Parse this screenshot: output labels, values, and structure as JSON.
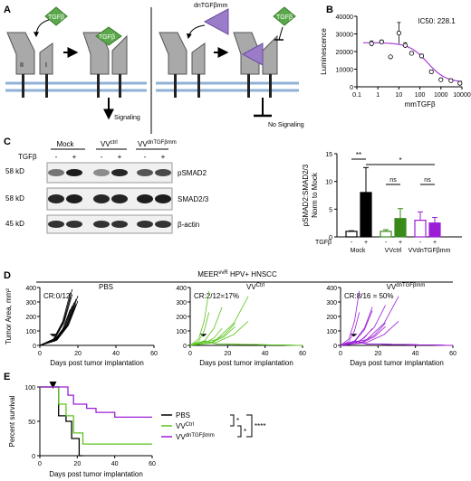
{
  "panels": {
    "a": "A",
    "b": "B",
    "c": "C",
    "d": "D",
    "e": "E"
  },
  "panel_a": {
    "ligand_left": "TGFβ",
    "ligand_bound": "TGFβ",
    "dn_label": "dnTGFβmm",
    "ligand_right": "TGFβ",
    "receptor_ii": "II",
    "receptor_i": "I",
    "signaling": "Signaling",
    "no_signaling": "No Signaling"
  },
  "panel_c": {
    "group_mock": "Mock",
    "group_vvctrl_base": "VV",
    "group_vvctrl_sup": "ctrl",
    "group_vvdn_base": "VV",
    "group_vvdn_sup": "dnTGFβmm",
    "tgfb_label": "TGFβ",
    "tgfb_signs": [
      "-",
      "+",
      "-",
      "+",
      "-",
      "+"
    ],
    "bands": [
      "pSMAD2",
      "SMAD2/3",
      "β-actin"
    ],
    "mw": [
      "58 kD",
      "58 kD",
      "45 kD"
    ],
    "quant_ylabel_1": "pSMAD2:SMAD2/3",
    "quant_ylabel_2": "Norm to Mock",
    "quant_tgfb": "TGFβ",
    "quant_signs": [
      "-",
      "+",
      "-",
      "+",
      "-",
      "+"
    ],
    "quant_groups": [
      "Mock",
      "VVctrl",
      "VVdnTGFβmm"
    ],
    "sig_1": "**",
    "sig_2": "*",
    "sig_3": "ns",
    "sig_4": "ns"
  },
  "panel_d": {
    "header": "MEERvvR HPV+ HNSCC",
    "header_base": "MEER",
    "header_sup": "vvR",
    "header_rest": " HPV+ HNSCC",
    "ylabel": "Tumor Area, mm²",
    "xlabel": "Days post tumor implantation",
    "subplots": [
      {
        "title_base": "PBS",
        "title_sup": "",
        "cr": "CR:0/12",
        "color": "#000000"
      },
      {
        "title_base": "VV",
        "title_sup": "Ctrl",
        "cr": "CR:2/12=17%",
        "color": "#5cc41f"
      },
      {
        "title_base": "VV",
        "title_sup": "dnTGFβmm",
        "cr": "CR:8/16 = 50%",
        "color": "#9b1fd6"
      }
    ],
    "xticks": [
      "0",
      "20",
      "40",
      "60"
    ],
    "yticks": [
      "0",
      "100",
      "200",
      "300",
      "400"
    ]
  },
  "chart_data": [
    {
      "type": "scatter",
      "panel": "B",
      "ylabel": "Luminescence",
      "xlabel": "mmTGFβ",
      "annotation": "IC50: 228.1",
      "xscale": "log",
      "xlim": [
        0.1,
        10000
      ],
      "ylim": [
        0,
        40000
      ],
      "xticks": [
        "0.1",
        "1",
        "10",
        "100",
        "1000",
        "10000"
      ],
      "yticks": [
        "0",
        "10000",
        "20000",
        "30000",
        "40000"
      ],
      "points": [
        {
          "x": 0.5,
          "y": 24500,
          "err": 1500
        },
        {
          "x": 1.5,
          "y": 25500,
          "err": 1000
        },
        {
          "x": 4,
          "y": 17000,
          "err": 0
        },
        {
          "x": 10,
          "y": 30500,
          "err": 6000
        },
        {
          "x": 20,
          "y": 23500,
          "err": 1500
        },
        {
          "x": 40,
          "y": 19000,
          "err": 1000
        },
        {
          "x": 120,
          "y": 17500,
          "err": 1000
        },
        {
          "x": 350,
          "y": 8500,
          "err": 1000
        },
        {
          "x": 1000,
          "y": 4000,
          "err": 1000
        },
        {
          "x": 3000,
          "y": 3500,
          "err": 1000
        },
        {
          "x": 8000,
          "y": 2000,
          "err": 1000
        }
      ],
      "fit": {
        "top": 25000,
        "bottom": 2500,
        "ic50": 228.1,
        "hill": 1.0
      },
      "fit_color": "#a63dd6"
    },
    {
      "type": "bar",
      "panel": "C",
      "ylabel": "pSMAD2:SMAD2/3 Norm to Mock",
      "ylim": [
        0,
        15
      ],
      "yticks": [
        "0",
        "5",
        "10",
        "15"
      ],
      "categories": [
        "Mock -",
        "Mock +",
        "VVctrl -",
        "VVctrl +",
        "VVdnTGFβmm -",
        "VVdnTGFβmm +"
      ],
      "values": [
        1.0,
        8.0,
        1.0,
        3.3,
        3.0,
        2.5
      ],
      "errors": [
        0.1,
        4.5,
        0.3,
        1.8,
        1.5,
        1.0
      ],
      "colors": [
        "#ffffff",
        "#000000",
        "#ffffff",
        "#3a8a1a",
        "#ffffff",
        "#9b1fd6"
      ],
      "edges": [
        "#000000",
        "#000000",
        "#3a8a1a",
        "#3a8a1a",
        "#9b1fd6",
        "#9b1fd6"
      ]
    },
    {
      "type": "line",
      "panel": "E",
      "ylabel": "Percent survival",
      "xlabel": "Days post tumor implantation",
      "xlim": [
        0,
        60
      ],
      "ylim": [
        0,
        100
      ],
      "xticks": [
        "0",
        "20",
        "40",
        "60"
      ],
      "yticks": [
        "0",
        "50",
        "100"
      ],
      "treatment_day": 7,
      "series": [
        {
          "name": "PBS",
          "color": "#000000",
          "steps": [
            [
              0,
              100
            ],
            [
              10,
              100
            ],
            [
              10,
              58
            ],
            [
              14,
              58
            ],
            [
              14,
              50
            ],
            [
              17,
              50
            ],
            [
              17,
              25
            ],
            [
              21,
              25
            ],
            [
              21,
              0
            ],
            [
              23,
              0
            ]
          ]
        },
        {
          "name": "VVCtrl",
          "color": "#5cc41f",
          "steps": [
            [
              0,
              100
            ],
            [
              10,
              100
            ],
            [
              10,
              75
            ],
            [
              14,
              75
            ],
            [
              14,
              58
            ],
            [
              18,
              58
            ],
            [
              18,
              33
            ],
            [
              23,
              33
            ],
            [
              23,
              17
            ],
            [
              60,
              17
            ]
          ]
        },
        {
          "name": "VVdnTGFβmm",
          "color": "#9b1fd6",
          "steps": [
            [
              0,
              100
            ],
            [
              15,
              100
            ],
            [
              15,
              88
            ],
            [
              18,
              88
            ],
            [
              18,
              75
            ],
            [
              25,
              75
            ],
            [
              25,
              69
            ],
            [
              30,
              69
            ],
            [
              30,
              63
            ],
            [
              40,
              63
            ],
            [
              40,
              56
            ],
            [
              60,
              56
            ]
          ]
        }
      ],
      "legend": [
        {
          "base": "PBS",
          "sup": ""
        },
        {
          "base": "VV",
          "sup": "Ctrl"
        },
        {
          "base": "VV",
          "sup": "dnTGFβmm"
        }
      ],
      "sig": [
        "*",
        "*",
        "****"
      ]
    }
  ]
}
